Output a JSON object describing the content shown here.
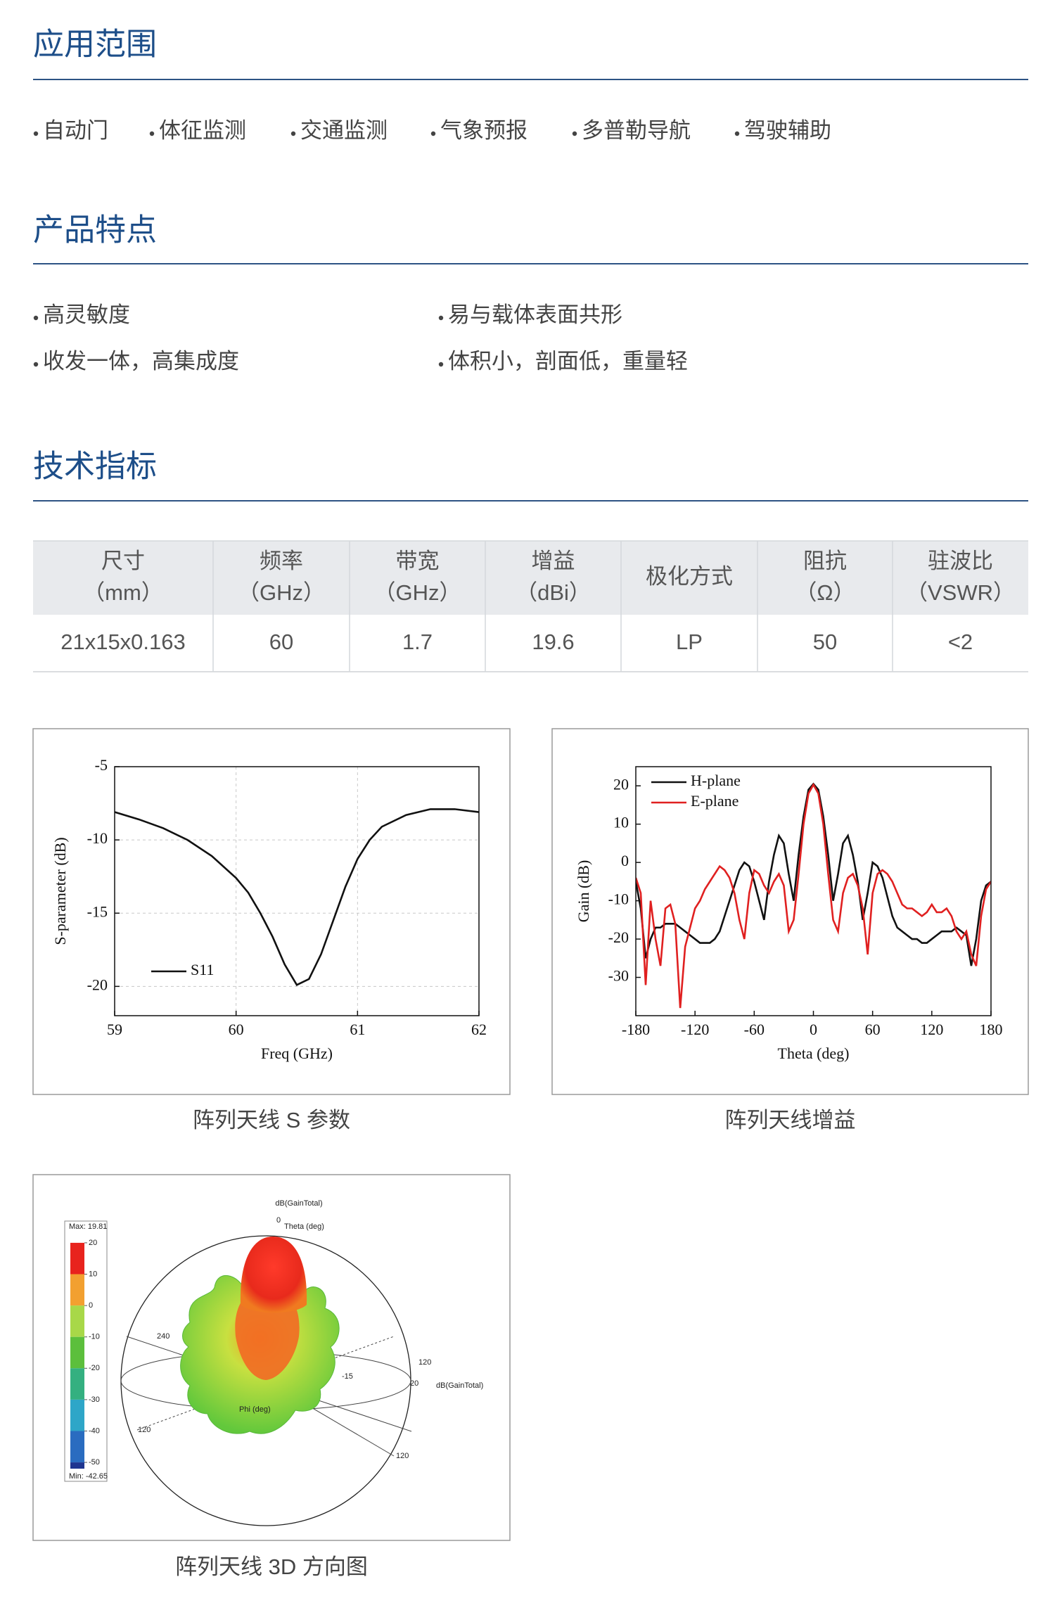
{
  "sections": [
    {
      "title": "应用范围",
      "items": [
        "自动门",
        "体征监测",
        "交通监测",
        "气象预报",
        "多普勒导航",
        "驾驶辅助"
      ]
    },
    {
      "title": "产品特点",
      "items": [
        "高灵敏度",
        "易与载体表面共形",
        "收发一体，高集成度",
        "体积小，剖面低，重量轻"
      ]
    },
    {
      "title": "技术指标"
    }
  ],
  "table": {
    "header": [
      {
        "name": "尺寸",
        "unit": "（mm）"
      },
      {
        "name": "频率",
        "unit": "（GHz）"
      },
      {
        "name": "带宽",
        "unit": "（GHz）"
      },
      {
        "name": "增益",
        "unit": "（dBi）"
      },
      {
        "name": "极化方式"
      },
      {
        "name": "阻抗",
        "unit": "（Ω）"
      },
      {
        "name": "驻波比",
        "unit": "（VSWR）"
      }
    ],
    "rows": [
      [
        "21x15x0.163",
        "60",
        "1.7",
        "19.6",
        "LP",
        "50",
        "<2"
      ]
    ]
  },
  "chart_data": [
    {
      "type": "line",
      "caption": "阵列天线 S 参数",
      "x_label": "Freq (GHz)",
      "y_label": "S-parameter (dB)",
      "x": [
        59.0,
        59.2,
        59.4,
        59.6,
        59.8,
        60.0,
        60.1,
        60.2,
        60.3,
        60.4,
        60.5,
        60.6,
        60.7,
        60.8,
        60.9,
        61.0,
        61.1,
        61.2,
        61.4,
        61.6,
        61.8,
        62.0
      ],
      "series": [
        {
          "name": "S11",
          "color": "#111111",
          "values": [
            -8.1,
            -8.6,
            -9.2,
            -10.0,
            -11.1,
            -12.6,
            -13.6,
            -15.0,
            -16.6,
            -18.5,
            -19.9,
            -19.5,
            -17.8,
            -15.5,
            -13.2,
            -11.3,
            -10.0,
            -9.1,
            -8.3,
            -7.9,
            -7.9,
            -8.1
          ]
        }
      ],
      "xlim": [
        59,
        62
      ],
      "xticks": [
        59,
        60,
        61,
        62
      ],
      "ylim": [
        -22,
        -5
      ],
      "yticks": [
        -5,
        -10,
        -15,
        -20
      ],
      "grid": true,
      "legend": "lower left"
    },
    {
      "type": "line",
      "caption": "阵列天线增益",
      "x_label": "Theta (deg)",
      "y_label": "Gain (dB)",
      "x": [
        -180,
        -175,
        -170,
        -165,
        -160,
        -155,
        -150,
        -145,
        -140,
        -135,
        -130,
        -125,
        -120,
        -115,
        -110,
        -105,
        -100,
        -95,
        -90,
        -85,
        -80,
        -75,
        -70,
        -65,
        -60,
        -55,
        -50,
        -45,
        -40,
        -35,
        -30,
        -25,
        -20,
        -15,
        -10,
        -5,
        0,
        5,
        10,
        15,
        20,
        25,
        30,
        35,
        40,
        45,
        50,
        55,
        60,
        65,
        70,
        75,
        80,
        85,
        90,
        95,
        100,
        105,
        110,
        115,
        120,
        125,
        130,
        135,
        140,
        145,
        150,
        155,
        160,
        165,
        170,
        175,
        180
      ],
      "series": [
        {
          "name": "H-plane",
          "color": "#111111",
          "values": [
            -5,
            -12,
            -25,
            -20,
            -17,
            -17,
            -16,
            -16,
            -16,
            -17,
            -18,
            -19,
            -20,
            -21,
            -21,
            -21,
            -20,
            -18,
            -14,
            -10,
            -6,
            -2,
            0,
            -1,
            -5,
            -10,
            -15,
            -5,
            2,
            7,
            5,
            -3,
            -10,
            2,
            12,
            19,
            20.5,
            19,
            12,
            2,
            -10,
            -3,
            5,
            7,
            2,
            -5,
            -15,
            -8,
            0,
            -1,
            -4,
            -9,
            -14,
            -17,
            -18,
            -19,
            -20,
            -20,
            -21,
            -21,
            -20,
            -19,
            -18,
            -18,
            -18,
            -17,
            -18,
            -19,
            -27,
            -20,
            -10,
            -6,
            -5
          ]
        },
        {
          "name": "E-plane",
          "color": "#e02020",
          "values": [
            -4,
            -8,
            -32,
            -10,
            -20,
            -27,
            -12,
            -11,
            -16,
            -38,
            -22,
            -17,
            -12,
            -10,
            -7,
            -5,
            -3,
            -1,
            -2,
            -4,
            -8,
            -15,
            -20,
            -8,
            -2,
            -3,
            -6,
            -8,
            -5,
            -3,
            -6,
            -18,
            -15,
            -3,
            10,
            18,
            20.3,
            18,
            10,
            -3,
            -15,
            -18,
            -8,
            -4,
            -3,
            -6,
            -12,
            -24,
            -8,
            -3,
            -2,
            -3,
            -5,
            -8,
            -11,
            -12,
            -12,
            -13,
            -14,
            -13,
            -11,
            -13,
            -13,
            -12,
            -14,
            -18,
            -20,
            -18,
            -24,
            -27,
            -14,
            -7,
            -5
          ]
        }
      ],
      "xlim": [
        -180,
        180
      ],
      "xticks": [
        -180,
        -120,
        -60,
        0,
        60,
        120,
        180
      ],
      "ylim": [
        -40,
        25
      ],
      "yticks": [
        20,
        10,
        0,
        -10,
        -20,
        -30
      ],
      "grid": false,
      "legend": "upper left"
    }
  ],
  "figure_3d": {
    "caption": "阵列天线 3D 方向图",
    "title": "dB(GainTotal)",
    "theta_zero": "0",
    "theta_label": "Theta (deg)",
    "max_label": "Max: 19.81",
    "min_label": "Min: -42.65",
    "colorbar_lim": [
      -52,
      22
    ],
    "colorbar_ticks": [
      20,
      10,
      0,
      -10,
      -20,
      -30,
      -40,
      -50
    ],
    "sphere_labels": [
      "240",
      "120",
      "-15",
      "20",
      "dB(GainTotal)",
      "Phi (deg)",
      "120",
      "120"
    ]
  }
}
